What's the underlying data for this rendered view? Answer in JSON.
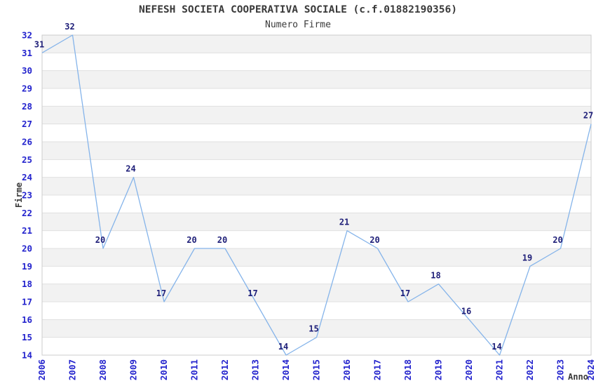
{
  "title": "NEFESH SOCIETA COOPERATIVA SOCIALE (c.f.01882190356)",
  "subtitle": "Numero Firme",
  "chart_data": {
    "type": "line",
    "title": "NEFESH SOCIETA COOPERATIVA SOCIALE (c.f.01882190356)",
    "subtitle": "Numero Firme",
    "x": [
      2006,
      2007,
      2008,
      2009,
      2010,
      2011,
      2012,
      2013,
      2014,
      2015,
      2016,
      2017,
      2018,
      2019,
      2020,
      2021,
      2022,
      2023,
      2024
    ],
    "values": [
      31,
      32,
      20,
      24,
      17,
      20,
      20,
      17,
      14,
      15,
      21,
      20,
      17,
      18,
      16,
      14,
      19,
      20,
      27
    ],
    "xlabel": "Anno",
    "ylabel": "Firme",
    "ylim": [
      14,
      32
    ],
    "ytick_step": 1,
    "grid": "horizontal-bands-with-lines",
    "legend_position": "none",
    "show_point_labels": true
  },
  "colors": {
    "line": "#85B4EA",
    "tick_label": "#2323CD",
    "point_label": "#1E1E78",
    "band_gray": "#F2F2F2",
    "band_white": "#FFFFFF",
    "gridline": "#E0E0E0",
    "plot_border": "#CCCCCC",
    "heading_text": "#3A3A3A",
    "background": "#FFFFFF"
  }
}
